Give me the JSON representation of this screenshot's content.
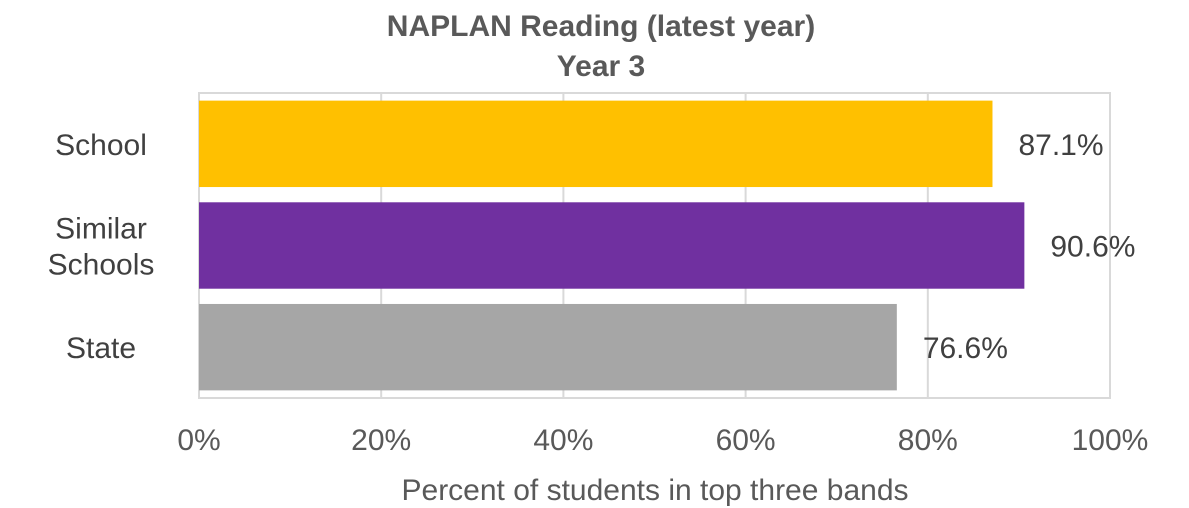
{
  "chart_data": {
    "type": "bar",
    "orientation": "horizontal",
    "title_lines": [
      "NAPLAN Reading (latest year)",
      "Year 3"
    ],
    "categories": [
      [
        "School"
      ],
      [
        "Similar",
        "Schools"
      ],
      [
        "State"
      ]
    ],
    "values": [
      87.1,
      90.6,
      76.6
    ],
    "value_labels": [
      "87.1%",
      "90.6%",
      "76.6%"
    ],
    "colors": [
      "#FFC000",
      "#7030A0",
      "#A6A6A6"
    ],
    "xlabel": "Percent of students in top three bands",
    "xlim": [
      0,
      100
    ],
    "ticks": [
      0,
      20,
      40,
      60,
      80,
      100
    ],
    "tick_labels": [
      "0%",
      "20%",
      "40%",
      "60%",
      "80%",
      "100%"
    ],
    "grid": true,
    "legend": "none"
  }
}
